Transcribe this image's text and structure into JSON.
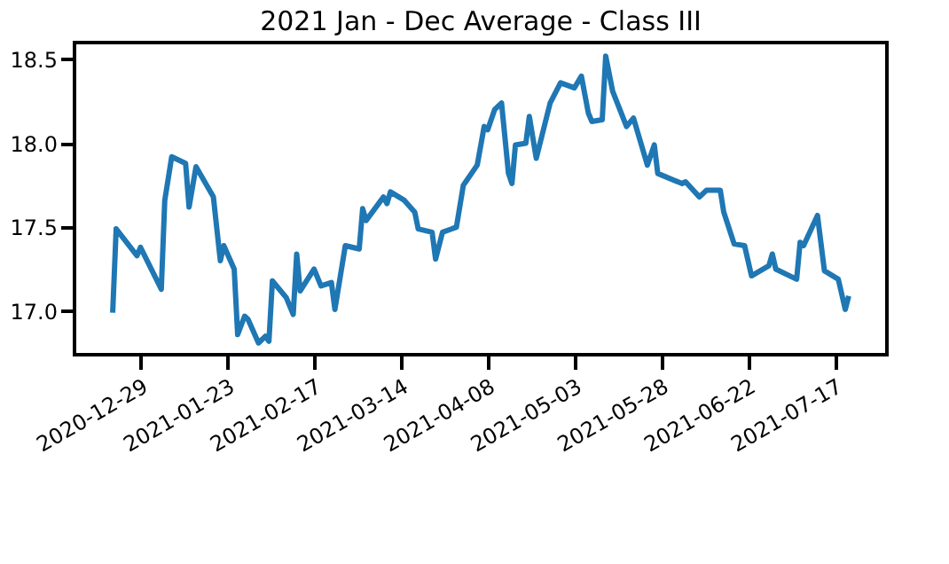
{
  "chart_data": {
    "type": "line",
    "title": "2021 Jan - Dec Average - Class III",
    "x": [
      "2020-12-21",
      "2020-12-22",
      "2020-12-28",
      "2020-12-29",
      "2021-01-04",
      "2021-01-05",
      "2021-01-07",
      "2021-01-11",
      "2021-01-12",
      "2021-01-14",
      "2021-01-19",
      "2021-01-21",
      "2021-01-22",
      "2021-01-25",
      "2021-01-26",
      "2021-01-28",
      "2021-01-29",
      "2021-02-01",
      "2021-02-03",
      "2021-02-04",
      "2021-02-05",
      "2021-02-09",
      "2021-02-11",
      "2021-02-12",
      "2021-02-13",
      "2021-02-17",
      "2021-02-19",
      "2021-02-22",
      "2021-02-23",
      "2021-02-26",
      "2021-03-02",
      "2021-03-03",
      "2021-03-04",
      "2021-03-09",
      "2021-03-10",
      "2021-03-11",
      "2021-03-15",
      "2021-03-18",
      "2021-03-19",
      "2021-03-23",
      "2021-03-24",
      "2021-03-26",
      "2021-03-30",
      "2021-04-01",
      "2021-04-02",
      "2021-04-05",
      "2021-04-07",
      "2021-04-08",
      "2021-04-10",
      "2021-04-12",
      "2021-04-14",
      "2021-04-15",
      "2021-04-16",
      "2021-04-19",
      "2021-04-20",
      "2021-04-22",
      "2021-04-26",
      "2021-04-29",
      "2021-05-03",
      "2021-05-05",
      "2021-05-07",
      "2021-05-08",
      "2021-05-11",
      "2021-05-12",
      "2021-05-14",
      "2021-05-18",
      "2021-05-20",
      "2021-05-24",
      "2021-05-26",
      "2021-05-27",
      "2021-06-03",
      "2021-06-04",
      "2021-06-08",
      "2021-06-10",
      "2021-06-14",
      "2021-06-15",
      "2021-06-18",
      "2021-06-21",
      "2021-06-23",
      "2021-06-28",
      "2021-06-29",
      "2021-06-30",
      "2021-07-06",
      "2021-07-07",
      "2021-07-08",
      "2021-07-12",
      "2021-07-14",
      "2021-07-18",
      "2021-07-20",
      "2021-07-21"
    ],
    "series": [
      {
        "color": "#1f77b4",
        "values": [
          16.99,
          17.49,
          17.33,
          17.38,
          17.13,
          17.66,
          17.92,
          17.88,
          17.62,
          17.86,
          17.68,
          17.3,
          17.39,
          17.25,
          16.86,
          16.97,
          16.95,
          16.81,
          16.85,
          16.82,
          17.18,
          17.08,
          16.98,
          17.34,
          17.12,
          17.25,
          17.15,
          17.17,
          17.01,
          17.39,
          17.37,
          17.61,
          17.54,
          17.68,
          17.64,
          17.71,
          17.66,
          17.59,
          17.49,
          17.47,
          17.31,
          17.47,
          17.5,
          17.75,
          17.78,
          17.87,
          18.1,
          18.08,
          18.2,
          18.24,
          17.82,
          17.76,
          17.99,
          18.0,
          18.16,
          17.91,
          18.24,
          18.36,
          18.33,
          18.4,
          18.18,
          18.13,
          18.14,
          18.52,
          18.31,
          18.1,
          18.15,
          17.87,
          17.99,
          17.82,
          17.76,
          17.77,
          17.68,
          17.72,
          17.72,
          17.59,
          17.4,
          17.39,
          17.21,
          17.27,
          17.34,
          17.25,
          17.19,
          17.41,
          17.39,
          17.57,
          17.24,
          17.19,
          17.01,
          17.09
        ]
      }
    ],
    "xlim": [
      "2020-12-10",
      "2021-08-01"
    ],
    "xticks": [
      "2020-12-29",
      "2021-01-23",
      "2021-02-17",
      "2021-03-14",
      "2021-04-08",
      "2021-05-03",
      "2021-05-28",
      "2021-06-22",
      "2021-07-17"
    ],
    "ylim": [
      16.74,
      18.6
    ],
    "yticks": [
      {
        "value": 17,
        "label": "17.0"
      },
      17.5,
      {
        "value": 18,
        "label": "18.0"
      },
      18.5
    ],
    "grid": false,
    "marker": "none",
    "line_style": "solid"
  }
}
